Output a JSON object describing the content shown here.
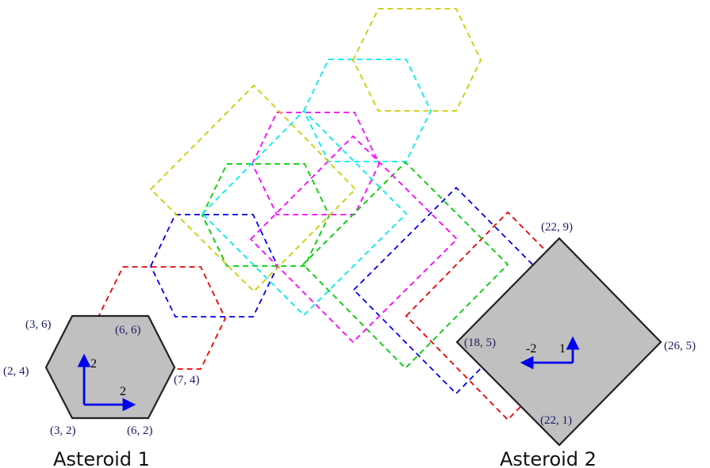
{
  "colors": {
    "shape_fill": "#c0c0c0",
    "shape_stroke": "#222222",
    "vector": "#0000ee",
    "vertex_label": "#1a1a66"
  },
  "asteroids": [
    {
      "title": "Asteroid 1",
      "vertices": [
        [
          2,
          4
        ],
        [
          3,
          6
        ],
        [
          6,
          6
        ],
        [
          7,
          4
        ],
        [
          6,
          2
        ],
        [
          3,
          2
        ]
      ],
      "labels": [
        {
          "text": "(3, 6)"
        },
        {
          "text": "(6, 6)"
        },
        {
          "text": "(2, 4)"
        },
        {
          "text": "(7, 4)"
        },
        {
          "text": "(3, 2)"
        },
        {
          "text": "(6, 2)"
        }
      ],
      "velocity": {
        "x": "2",
        "y": "2"
      }
    },
    {
      "title": "Asteroid 2",
      "vertices": [
        [
          18,
          5
        ],
        [
          22,
          9
        ],
        [
          26,
          5
        ],
        [
          22,
          1
        ]
      ],
      "labels": [
        {
          "text": "(22, 9)"
        },
        {
          "text": "(18, 5)"
        },
        {
          "text": "(26, 5)"
        },
        {
          "text": "(22, 1)"
        }
      ],
      "velocity": {
        "x": "-2",
        "y": "1"
      }
    }
  ],
  "trail_colors": [
    "#ee0000",
    "#0000ee",
    "#00cc00",
    "#ff00ff",
    "#00eeee",
    "#cccc00"
  ]
}
